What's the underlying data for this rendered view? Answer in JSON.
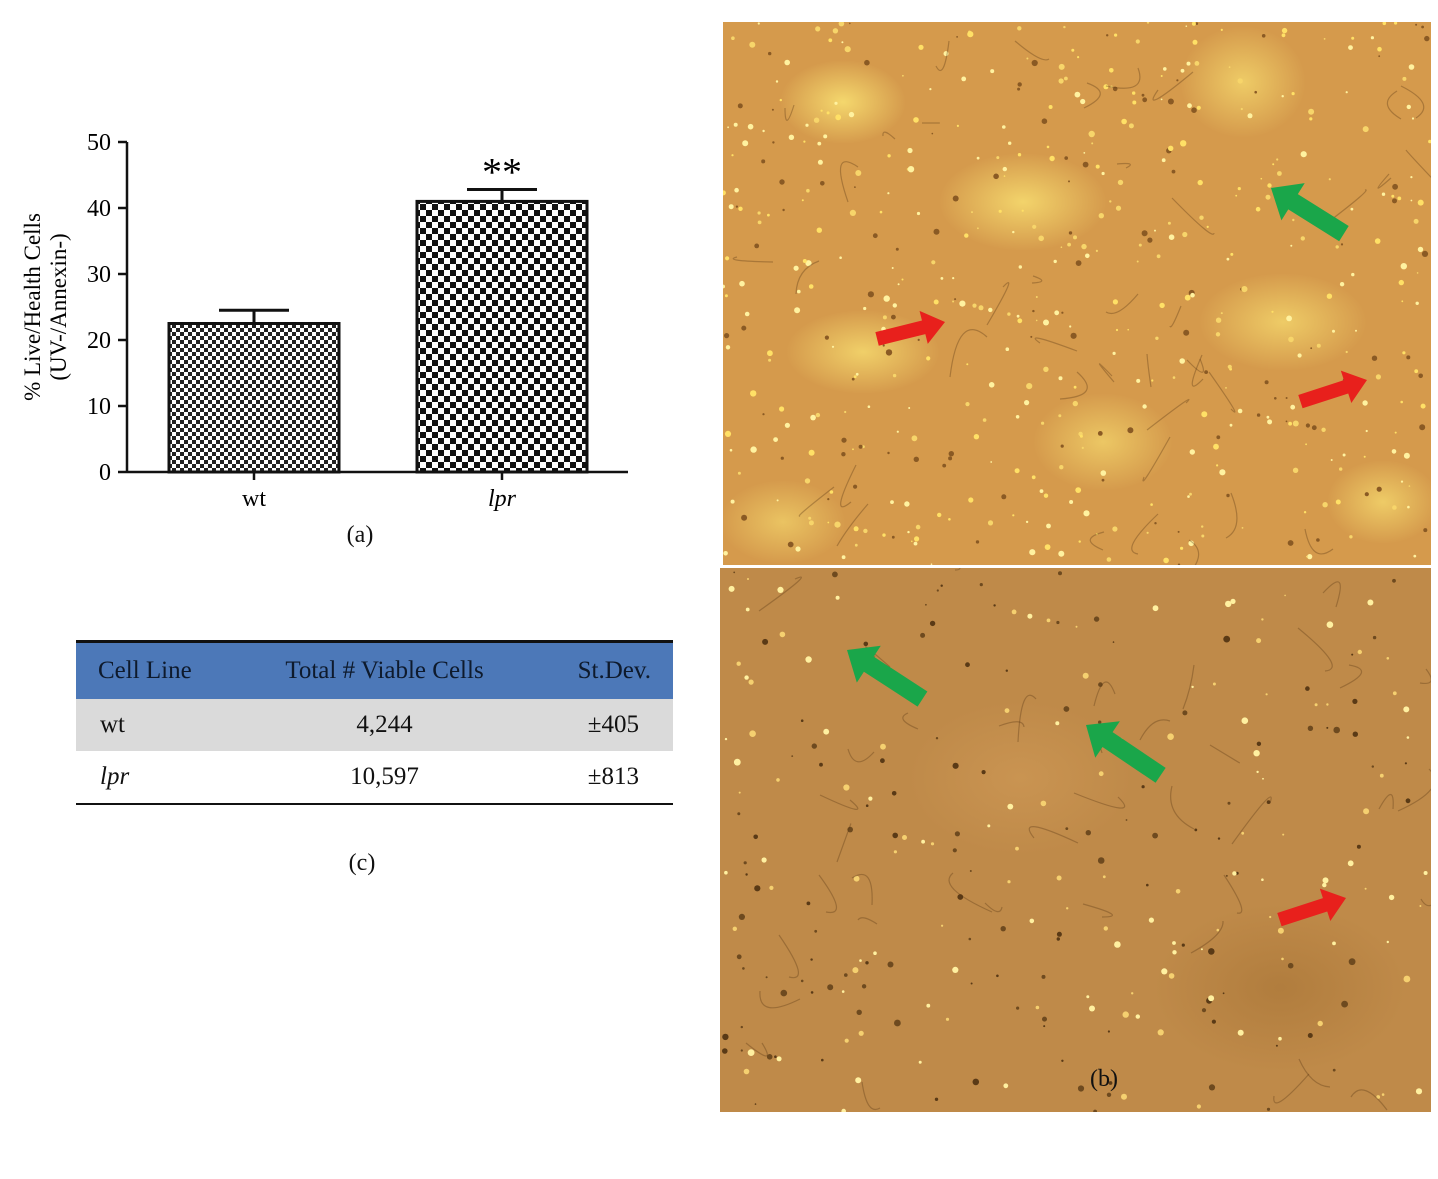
{
  "chart_data": {
    "type": "bar",
    "categories": [
      "wt",
      "lpr"
    ],
    "values": [
      22.5,
      41
    ],
    "errors": [
      2,
      1.8
    ],
    "significance": [
      "",
      "**"
    ],
    "ylabel_line1": "% Live/Health Cells",
    "ylabel_line2": "(UV-/Annexin-)",
    "xlabel": "",
    "ylim": [
      0,
      50
    ],
    "yticks": [
      0,
      10,
      20,
      30,
      40,
      50
    ],
    "grid": false,
    "legend": "none"
  },
  "labels": {
    "a": "(a)",
    "b": "(b)",
    "c": "(c)"
  },
  "table": {
    "headers": [
      "Cell Line",
      "Total # Viable Cells",
      "St.Dev."
    ],
    "rows": [
      {
        "cell_line": "wt",
        "total": "4,244",
        "stdev": "±405"
      },
      {
        "cell_line": "lpr",
        "total": "10,597",
        "stdev": "±813"
      }
    ]
  },
  "micrographs": [
    {
      "name": "micrograph-top",
      "arrows": {
        "green": 1,
        "red": 2
      }
    },
    {
      "name": "micrograph-bottom",
      "arrows": {
        "green": 2,
        "red": 1
      }
    }
  ],
  "colors": {
    "arrow_green": "#1aa64a",
    "arrow_red": "#e8201c",
    "table_header": "#4c78b8"
  }
}
